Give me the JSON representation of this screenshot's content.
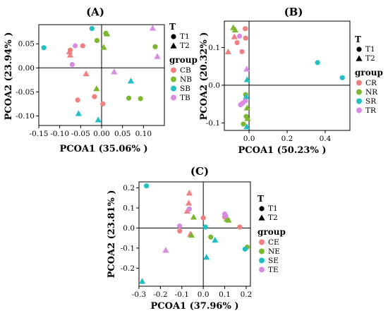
{
  "colors": {
    "C": "#f08080",
    "N": "#7cb82f",
    "S": "#1fbfc4",
    "T": "#d98be3"
  },
  "chart_data": [
    {
      "type": "scatter",
      "title": "(A)",
      "xlabel": "PCOA1 (35.06% )",
      "ylabel": "PCOA2 (23.94% )",
      "xlim": [
        -0.15,
        0.15
      ],
      "ylim": [
        -0.12,
        0.09
      ],
      "xticks": [
        -0.15,
        -0.1,
        -0.05,
        0,
        0.05,
        0.1
      ],
      "xtick_labels": [
        "-0.15",
        "-0.10",
        "-0.05",
        "0.00",
        "0.05",
        "0.10"
      ],
      "yticks": [
        -0.1,
        -0.05,
        0,
        0.05
      ],
      "ytick_labels": [
        "-0.10",
        "-0.05",
        "0.00",
        "0.05"
      ],
      "legend": {
        "shape_title": "T",
        "shapes": [
          "T1",
          "T2"
        ],
        "group_title": "group",
        "groups": [
          "CB",
          "NB",
          "SB",
          "TB"
        ]
      },
      "points": [
        {
          "x": -0.075,
          "y": 0.037,
          "group": "CB",
          "shape": "T1"
        },
        {
          "x": -0.077,
          "y": 0.034,
          "group": "CB",
          "shape": "T2"
        },
        {
          "x": -0.075,
          "y": 0.027,
          "group": "CB",
          "shape": "T2"
        },
        {
          "x": -0.045,
          "y": 0.046,
          "group": "CB",
          "shape": "T1"
        },
        {
          "x": -0.037,
          "y": -0.012,
          "group": "CB",
          "shape": "T2"
        },
        {
          "x": -0.057,
          "y": -0.067,
          "group": "CB",
          "shape": "T1"
        },
        {
          "x": -0.017,
          "y": -0.06,
          "group": "CB",
          "shape": "T1"
        },
        {
          "x": 0.003,
          "y": -0.075,
          "group": "CB",
          "shape": "T1"
        },
        {
          "x": -0.011,
          "y": 0.057,
          "group": "NB",
          "shape": "T1"
        },
        {
          "x": 0.01,
          "y": 0.072,
          "group": "NB",
          "shape": "T1"
        },
        {
          "x": 0.013,
          "y": 0.071,
          "group": "NB",
          "shape": "T2"
        },
        {
          "x": 0.005,
          "y": 0.043,
          "group": "NB",
          "shape": "T2"
        },
        {
          "x": -0.012,
          "y": -0.043,
          "group": "NB",
          "shape": "T2"
        },
        {
          "x": 0.065,
          "y": -0.063,
          "group": "NB",
          "shape": "T1"
        },
        {
          "x": 0.093,
          "y": -0.064,
          "group": "NB",
          "shape": "T1"
        },
        {
          "x": 0.128,
          "y": 0.044,
          "group": "NB",
          "shape": "T1"
        },
        {
          "x": -0.138,
          "y": 0.042,
          "group": "SB",
          "shape": "T1"
        },
        {
          "x": -0.023,
          "y": 0.082,
          "group": "SB",
          "shape": "T1"
        },
        {
          "x": 0.07,
          "y": -0.027,
          "group": "SB",
          "shape": "T2"
        },
        {
          "x": -0.055,
          "y": -0.095,
          "group": "SB",
          "shape": "T2"
        },
        {
          "x": -0.008,
          "y": -0.108,
          "group": "SB",
          "shape": "T2"
        },
        {
          "x": -0.07,
          "y": 0.007,
          "group": "TB",
          "shape": "T1"
        },
        {
          "x": -0.063,
          "y": 0.046,
          "group": "TB",
          "shape": "T1"
        },
        {
          "x": 0.03,
          "y": -0.008,
          "group": "TB",
          "shape": "T2"
        },
        {
          "x": 0.122,
          "y": 0.083,
          "group": "TB",
          "shape": "T2"
        },
        {
          "x": 0.133,
          "y": 0.024,
          "group": "TB",
          "shape": "T2"
        }
      ]
    },
    {
      "type": "scatter",
      "title": "(B)",
      "xlabel": "PCOA1 (50.23% )",
      "ylabel": "PCOA2 (20.32% )",
      "xlim": [
        -0.13,
        0.53
      ],
      "ylim": [
        -0.12,
        0.17
      ],
      "xticks": [
        0,
        0.2,
        0.4
      ],
      "xtick_labels": [
        "0.0",
        "0.2",
        "0.4"
      ],
      "yticks": [
        -0.1,
        0,
        0.1
      ],
      "ytick_labels": [
        "-0.1",
        "0.0",
        "0.1"
      ],
      "legend": {
        "shape_title": "T",
        "shapes": [
          "T1",
          "T2"
        ],
        "group_title": "group",
        "groups": [
          "CR",
          "NR",
          "SR",
          "TR"
        ]
      },
      "points": [
        {
          "x": -0.11,
          "y": 0.089,
          "group": "CR",
          "shape": "T2"
        },
        {
          "x": -0.077,
          "y": 0.129,
          "group": "CR",
          "shape": "T2"
        },
        {
          "x": -0.063,
          "y": 0.113,
          "group": "CR",
          "shape": "T1"
        },
        {
          "x": -0.037,
          "y": 0.089,
          "group": "CR",
          "shape": "T1"
        },
        {
          "x": -0.02,
          "y": 0.15,
          "group": "CR",
          "shape": "T1"
        },
        {
          "x": -0.018,
          "y": 0.125,
          "group": "CR",
          "shape": "T1"
        },
        {
          "x": -0.083,
          "y": 0.153,
          "group": "NR",
          "shape": "T2"
        },
        {
          "x": -0.073,
          "y": 0.147,
          "group": "NR",
          "shape": "T2"
        },
        {
          "x": -0.018,
          "y": -0.025,
          "group": "NR",
          "shape": "T1"
        },
        {
          "x": -0.01,
          "y": -0.06,
          "group": "NR",
          "shape": "T2"
        },
        {
          "x": -0.015,
          "y": -0.083,
          "group": "NR",
          "shape": "T1"
        },
        {
          "x": -0.008,
          "y": -0.088,
          "group": "NR",
          "shape": "T2"
        },
        {
          "x": -0.03,
          "y": -0.103,
          "group": "NR",
          "shape": "T1"
        },
        {
          "x": 0.36,
          "y": 0.06,
          "group": "SR",
          "shape": "T1"
        },
        {
          "x": 0.49,
          "y": 0.02,
          "group": "SR",
          "shape": "T1"
        },
        {
          "x": -0.01,
          "y": 0.015,
          "group": "SR",
          "shape": "T2"
        },
        {
          "x": -0.015,
          "y": -0.03,
          "group": "SR",
          "shape": "T2"
        },
        {
          "x": -0.012,
          "y": -0.11,
          "group": "SR",
          "shape": "T2"
        },
        {
          "x": -0.05,
          "y": 0.13,
          "group": "TR",
          "shape": "T1"
        },
        {
          "x": -0.012,
          "y": 0.043,
          "group": "TR",
          "shape": "T2"
        },
        {
          "x": -0.02,
          "y": -0.042,
          "group": "TR",
          "shape": "T1"
        },
        {
          "x": -0.045,
          "y": -0.052,
          "group": "TR",
          "shape": "T1"
        },
        {
          "x": -0.035,
          "y": -0.048,
          "group": "TR",
          "shape": "T1"
        }
      ]
    },
    {
      "type": "scatter",
      "title": "(C)",
      "xlabel": "PCOA1 (37.96% )",
      "ylabel": "PCOA2 (23.81% )",
      "xlim": [
        -0.3,
        0.22
      ],
      "ylim": [
        -0.29,
        0.23
      ],
      "xticks": [
        -0.3,
        -0.2,
        -0.1,
        0,
        0.1,
        0.2
      ],
      "xtick_labels": [
        "-0.3",
        "-0.2",
        "-0.1",
        "0.0",
        "0.1",
        "0.2"
      ],
      "yticks": [
        -0.2,
        -0.1,
        0,
        0.1,
        0.2
      ],
      "ytick_labels": [
        "-0.2",
        "-0.1",
        "0.0",
        "0.1",
        "0.2"
      ],
      "legend": {
        "shape_title": "T",
        "shapes": [
          "T1",
          "T2"
        ],
        "group_title": "group",
        "groups": [
          "CE",
          "NE",
          "SE",
          "TE"
        ]
      },
      "points": [
        {
          "x": -0.065,
          "y": 0.175,
          "group": "CE",
          "shape": "T2"
        },
        {
          "x": -0.075,
          "y": 0.085,
          "group": "CE",
          "shape": "T2"
        },
        {
          "x": -0.068,
          "y": 0.125,
          "group": "CE",
          "shape": "T2"
        },
        {
          "x": -0.11,
          "y": -0.015,
          "group": "CE",
          "shape": "T1"
        },
        {
          "x": -0.06,
          "y": -0.03,
          "group": "CE",
          "shape": "T2"
        },
        {
          "x": 0.0,
          "y": 0.05,
          "group": "CE",
          "shape": "T1"
        },
        {
          "x": 0.1,
          "y": 0.055,
          "group": "CE",
          "shape": "T1"
        },
        {
          "x": 0.17,
          "y": 0.005,
          "group": "CE",
          "shape": "T1"
        },
        {
          "x": -0.045,
          "y": 0.055,
          "group": "NE",
          "shape": "T2"
        },
        {
          "x": -0.055,
          "y": -0.035,
          "group": "NE",
          "shape": "T2"
        },
        {
          "x": 0.035,
          "y": -0.045,
          "group": "NE",
          "shape": "T1"
        },
        {
          "x": 0.11,
          "y": 0.045,
          "group": "NE",
          "shape": "T2"
        },
        {
          "x": 0.118,
          "y": 0.04,
          "group": "NE",
          "shape": "T2"
        },
        {
          "x": 0.205,
          "y": -0.095,
          "group": "NE",
          "shape": "T1"
        },
        {
          "x": -0.265,
          "y": 0.21,
          "group": "SE",
          "shape": "T1"
        },
        {
          "x": 0.01,
          "y": 0.005,
          "group": "SE",
          "shape": "T1"
        },
        {
          "x": 0.055,
          "y": -0.06,
          "group": "SE",
          "shape": "T2"
        },
        {
          "x": 0.015,
          "y": -0.145,
          "group": "SE",
          "shape": "T2"
        },
        {
          "x": 0.195,
          "y": -0.105,
          "group": "SE",
          "shape": "T1"
        },
        {
          "x": -0.285,
          "y": -0.265,
          "group": "SE",
          "shape": "T2"
        },
        {
          "x": -0.065,
          "y": 0.095,
          "group": "TE",
          "shape": "T1"
        },
        {
          "x": -0.11,
          "y": 0.01,
          "group": "TE",
          "shape": "T1"
        },
        {
          "x": -0.175,
          "y": -0.11,
          "group": "TE",
          "shape": "T2"
        },
        {
          "x": 0.1,
          "y": 0.07,
          "group": "TE",
          "shape": "T1"
        },
        {
          "x": 0.105,
          "y": 0.06,
          "group": "TE",
          "shape": "T1"
        }
      ]
    }
  ]
}
